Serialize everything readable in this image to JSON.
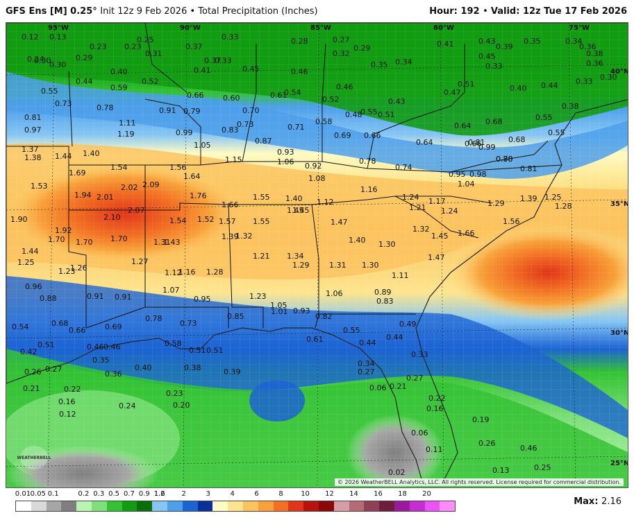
{
  "header": {
    "model": "GFS Ens [M] 0.25°",
    "init": "Init 12z 9 Feb 2026",
    "product": "Total Precipitation (Inches)",
    "hour_label": "Hour:",
    "hour": "192",
    "valid_label": "Valid:",
    "valid": "12z Tue 17 Feb 2026"
  },
  "grid_labels": {
    "lon": [
      "95°W",
      "90°W",
      "85°W",
      "80°W",
      "75°W"
    ],
    "lat": [
      "40°N",
      "35°N",
      "30°N",
      "25°N"
    ]
  },
  "values": [
    "0.12",
    "0.13",
    "0.25",
    "0.33",
    "0.30",
    "0.28",
    "0.27",
    "0.29",
    "0.41",
    "0.43",
    "0.35",
    "0.34",
    "0.24",
    "0.23",
    "0.23",
    "0.31",
    "0.37",
    "0.33",
    "0.36",
    "0.45",
    "0.39",
    "0.38",
    "0.30",
    "0.29",
    "0.40",
    "0.37",
    "0.45",
    "0.46",
    "0.32",
    "0.35",
    "0.34",
    "0.36",
    "0.33",
    "0.44",
    "0.59",
    "0.52",
    "0.41",
    "0.54",
    "0.46",
    "0.51",
    "0.40",
    "0.44",
    "0.33",
    "0.30",
    "0.55",
    "0.73",
    "0.78",
    "0.66",
    "0.60",
    "0.61",
    "0.52",
    "0.43",
    "0.47",
    "0.38",
    "0.81",
    "0.91",
    "0.79",
    "0.70",
    "0.55",
    "0.48",
    "0.51",
    "0.64",
    "0.55",
    "0.97",
    "1.11",
    "1.19",
    "0.99",
    "0.83",
    "0.73",
    "0.58",
    "0.71",
    "0.69",
    "0.66",
    "0.64",
    "0.68",
    "1.37",
    "1.38",
    "1.44",
    "1.40",
    "1.05",
    "0.87",
    "0.93",
    "0.81",
    "0.68",
    "0.55",
    "1.15",
    "1.06",
    "0.92",
    "0.78",
    "0.74",
    "0.66",
    "0.80",
    "0.81",
    "1.54",
    "1.56",
    "1.69",
    "1.64",
    "1.53",
    "1.94",
    "2.02",
    "2.09",
    "1.08",
    "0.78",
    "0.95",
    "0.98",
    "0.99",
    "1.04",
    "1.16",
    "1.90",
    "2.01",
    "2.07",
    "1.76",
    "1.55",
    "1.40",
    "1.24",
    "1.29",
    "1.39",
    "1.17",
    "1.25",
    "2.10",
    "1.66",
    "1.45",
    "1.12",
    "1.21",
    "1.24",
    "1.28",
    "1.92",
    "1.54",
    "1.52",
    "1.57",
    "1.55",
    "1.45",
    "1.47",
    "1.32",
    "1.56",
    "1.70",
    "1.70",
    "1.70",
    "1.31",
    "1.43",
    "1.39",
    "1.40",
    "1.32",
    "1.45",
    "1.66",
    "1.44",
    "1.21",
    "1.34",
    "1.30",
    "1.47",
    "1.25",
    "1.27",
    "1.29",
    "1.31",
    "1.30",
    "1.23",
    "1.26",
    "1.12",
    "1.16",
    "1.28",
    "1.11",
    "0.96",
    "0.91",
    "0.91",
    "1.07",
    "1.06",
    "0.89",
    "0.88",
    "0.95",
    "1.23",
    "1.05",
    "0.83",
    "0.78",
    "0.85",
    "1.01",
    "0.93",
    "0.82",
    "0.54",
    "0.68",
    "0.69",
    "0.73",
    "0.61",
    "0.55",
    "0.49",
    "0.66",
    "0.46",
    "0.58",
    "0.51",
    "0.51",
    "0.44",
    "0.44",
    "0.42",
    "0.51",
    "0.46",
    "0.38",
    "0.39",
    "0.33",
    "0.34",
    "0.26",
    "0.27",
    "0.35",
    "0.36",
    "0.40",
    "0.27",
    "0.27",
    "0.21",
    "0.22",
    "0.23",
    "0.06",
    "0.21",
    "0.22",
    "0.16",
    "0.24",
    "0.20",
    "0.19",
    "0.12",
    "0.06",
    "0.16",
    "0.26",
    "0.11",
    "0.46",
    "0.25",
    "0.13",
    "0.02"
  ],
  "watermark": "WEATHERBELL",
  "copyright": "© 2026 WeatherBELL Analytics, LLC. All rights reserved. License required for commercial distribution.",
  "legend": {
    "ticks": [
      "0.01",
      "0.05",
      "0.1",
      "0.2",
      "0.3",
      "0.5",
      "0.7",
      "0.9",
      "1.2",
      "1.6",
      "2",
      "3",
      "4",
      "6",
      "8",
      "10",
      "12",
      "14",
      "16",
      "18",
      "20"
    ],
    "colors": [
      "#ffffff",
      "#d9d9d9",
      "#a6a6a6",
      "#7f7f7f",
      "#b8f5b0",
      "#7ee07a",
      "#34c234",
      "#129c12",
      "#0a6f0a",
      "#86c6f4",
      "#4c9fea",
      "#1c63d3",
      "#0a2f9b",
      "#fffbc4",
      "#fde58f",
      "#fbc35f",
      "#f8a13a",
      "#f26f24",
      "#e13519",
      "#b8120f",
      "#8a0808",
      "#d59da6",
      "#b56a76",
      "#8f4055",
      "#6e1d3c",
      "#9a1a9f",
      "#c42ed0",
      "#ec52f4",
      "#ff8cfd"
    ],
    "max_label": "Max:",
    "max_value": "2.16"
  }
}
